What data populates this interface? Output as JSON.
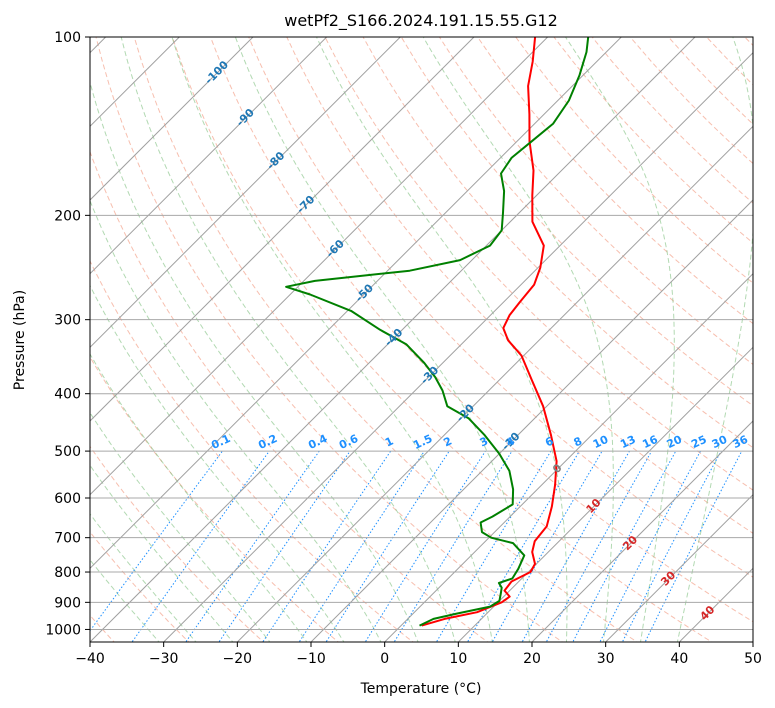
{
  "chart_data": {
    "type": "line",
    "title": "wetPf2_S166.2024.191.15.55.G12",
    "xlabel": "Temperature (°C)",
    "ylabel": "Pressure (hPa)",
    "xlim": [
      -40,
      50
    ],
    "ylim": [
      1050,
      100
    ],
    "y_scale": "log",
    "grid": true,
    "x_ticks": [
      -40,
      -30,
      -20,
      -10,
      0,
      10,
      20,
      30,
      40,
      50
    ],
    "y_ticks": [
      100,
      200,
      300,
      400,
      500,
      600,
      700,
      800,
      900,
      1000
    ],
    "skew_degrees": 45,
    "colors": {
      "temperature": "#ff0000",
      "dewpoint": "#008000",
      "dry_adiabat": "#f08060",
      "moist_adiabat": "#7fbf7f",
      "mixing_ratio": "#1e90ff",
      "isotherm_label": "#1f77b4",
      "isotherm_label_warm": "#d62728",
      "zero_label": "#808080"
    },
    "isotherm_labels": [
      {
        "value": -100,
        "p": 115
      },
      {
        "value": -90,
        "p": 137
      },
      {
        "value": -80,
        "p": 162
      },
      {
        "value": -70,
        "p": 192
      },
      {
        "value": -60,
        "p": 228
      },
      {
        "value": -50,
        "p": 271
      },
      {
        "value": -40,
        "p": 322
      },
      {
        "value": -30,
        "p": 373
      },
      {
        "value": -20,
        "p": 432
      },
      {
        "value": -10,
        "p": 482
      },
      {
        "value": 0,
        "p": 536
      },
      {
        "value": 10,
        "p": 620
      },
      {
        "value": 20,
        "p": 716
      },
      {
        "value": 30,
        "p": 822
      },
      {
        "value": 40,
        "p": 940
      }
    ],
    "mixing_ratio_labels": [
      "0.1",
      "0.2",
      "0.4",
      "0.6",
      "1",
      "1.5",
      "2",
      "3",
      "4",
      "6",
      "8",
      "10",
      "13",
      "16",
      "20",
      "25",
      "30",
      "36"
    ],
    "mixing_ratio_values": [
      0.1,
      0.2,
      0.4,
      0.6,
      1,
      1.5,
      2,
      3,
      4,
      6,
      8,
      10,
      13,
      16,
      20,
      25,
      30,
      36
    ],
    "series": [
      {
        "role": "temperature",
        "points": [
          {
            "p": 985,
            "t": 2.8
          },
          {
            "p": 960,
            "t": 5.0
          },
          {
            "p": 935,
            "t": 8.5
          },
          {
            "p": 900,
            "t": 10.5
          },
          {
            "p": 880,
            "t": 10.8
          },
          {
            "p": 860,
            "t": 9.3
          },
          {
            "p": 830,
            "t": 9.0
          },
          {
            "p": 800,
            "t": 10.3
          },
          {
            "p": 775,
            "t": 9.8
          },
          {
            "p": 740,
            "t": 7.8
          },
          {
            "p": 710,
            "t": 6.7
          },
          {
            "p": 670,
            "t": 6.3
          },
          {
            "p": 620,
            "t": 4.3
          },
          {
            "p": 570,
            "t": 1.8
          },
          {
            "p": 520,
            "t": -1.2
          },
          {
            "p": 470,
            "t": -5.5
          },
          {
            "p": 420,
            "t": -10.5
          },
          {
            "p": 380,
            "t": -15.5
          },
          {
            "p": 345,
            "t": -20.3
          },
          {
            "p": 325,
            "t": -24.2
          },
          {
            "p": 310,
            "t": -26.5
          },
          {
            "p": 295,
            "t": -27.4
          },
          {
            "p": 280,
            "t": -27.8
          },
          {
            "p": 262,
            "t": -28.2
          },
          {
            "p": 245,
            "t": -29.7
          },
          {
            "p": 225,
            "t": -32.2
          },
          {
            "p": 205,
            "t": -37.0
          },
          {
            "p": 185,
            "t": -40.6
          },
          {
            "p": 168,
            "t": -43.8
          },
          {
            "p": 150,
            "t": -48.3
          },
          {
            "p": 135,
            "t": -52.0
          },
          {
            "p": 121,
            "t": -56.0
          },
          {
            "p": 110,
            "t": -58.7
          },
          {
            "p": 100,
            "t": -61.7
          }
        ]
      },
      {
        "role": "dewpoint",
        "points": [
          {
            "p": 985,
            "t": 2.5
          },
          {
            "p": 960,
            "t": 3.5
          },
          {
            "p": 940,
            "t": 6.0
          },
          {
            "p": 915,
            "t": 9.5
          },
          {
            "p": 895,
            "t": 10.0
          },
          {
            "p": 870,
            "t": 9.2
          },
          {
            "p": 850,
            "t": 8.5
          },
          {
            "p": 835,
            "t": 7.5
          },
          {
            "p": 820,
            "t": 8.7
          },
          {
            "p": 790,
            "t": 8.2
          },
          {
            "p": 750,
            "t": 7.2
          },
          {
            "p": 715,
            "t": 4.0
          },
          {
            "p": 700,
            "t": 0.3
          },
          {
            "p": 685,
            "t": -1.7
          },
          {
            "p": 660,
            "t": -3.2
          },
          {
            "p": 645,
            "t": -2.4
          },
          {
            "p": 615,
            "t": -1.3
          },
          {
            "p": 580,
            "t": -3.3
          },
          {
            "p": 540,
            "t": -6.3
          },
          {
            "p": 505,
            "t": -10.0
          },
          {
            "p": 470,
            "t": -14.5
          },
          {
            "p": 440,
            "t": -19.0
          },
          {
            "p": 420,
            "t": -23.5
          },
          {
            "p": 395,
            "t": -26.3
          },
          {
            "p": 375,
            "t": -29.1
          },
          {
            "p": 355,
            "t": -32.5
          },
          {
            "p": 330,
            "t": -37.5
          },
          {
            "p": 312,
            "t": -43.0
          },
          {
            "p": 290,
            "t": -49.5
          },
          {
            "p": 272,
            "t": -57.3
          },
          {
            "p": 264,
            "t": -61.6
          },
          {
            "p": 258,
            "t": -58.5
          },
          {
            "p": 248,
            "t": -47.0
          },
          {
            "p": 238,
            "t": -41.6
          },
          {
            "p": 225,
            "t": -39.5
          },
          {
            "p": 212,
            "t": -40.0
          },
          {
            "p": 198,
            "t": -42.2
          },
          {
            "p": 182,
            "t": -45.0
          },
          {
            "p": 170,
            "t": -47.8
          },
          {
            "p": 160,
            "t": -48.5
          },
          {
            "p": 150,
            "t": -48.0
          },
          {
            "p": 140,
            "t": -47.5
          },
          {
            "p": 128,
            "t": -48.5
          },
          {
            "p": 116,
            "t": -50.5
          },
          {
            "p": 106,
            "t": -52.7
          },
          {
            "p": 100,
            "t": -54.5
          }
        ]
      }
    ]
  }
}
